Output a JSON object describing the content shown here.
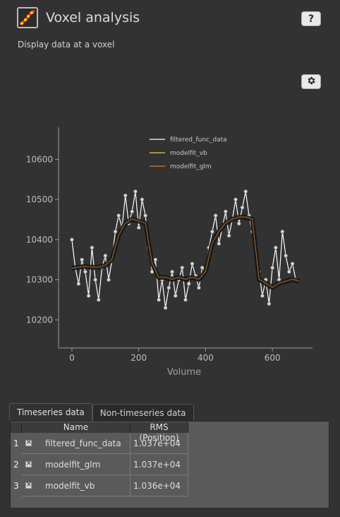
{
  "header": {
    "title": "Voxel analysis",
    "subtitle": "Display data at a voxel",
    "help_label": "?"
  },
  "icons": {
    "app": "voxel-plot-icon",
    "settings": "gear-icon"
  },
  "colors": {
    "background": "#323232",
    "filtered_func_data": "#ffffff",
    "modelfit_vb": "#f2c94c",
    "modelfit_glm": "#e07b2a"
  },
  "chart_data": {
    "type": "line",
    "xlabel": "Volume",
    "ylabel": "",
    "xlim": [
      -40,
      720
    ],
    "ylim": [
      10130,
      10680
    ],
    "xticks": [
      0,
      200,
      400,
      600
    ],
    "yticks": [
      10200,
      10300,
      10400,
      10500,
      10600
    ],
    "legend": {
      "placement": "top-center"
    },
    "grid": false,
    "series": [
      {
        "name": "filtered_func_data",
        "color": "#ffffff",
        "style": "line-with-markers",
        "x": [
          0,
          10,
          20,
          30,
          40,
          50,
          60,
          70,
          80,
          90,
          100,
          110,
          120,
          130,
          140,
          150,
          160,
          170,
          180,
          190,
          200,
          210,
          220,
          230,
          240,
          250,
          260,
          270,
          280,
          290,
          300,
          310,
          320,
          330,
          340,
          350,
          360,
          370,
          380,
          390,
          400,
          410,
          420,
          430,
          440,
          450,
          460,
          470,
          480,
          490,
          500,
          510,
          520,
          530,
          540,
          550,
          560,
          570,
          580,
          590,
          600,
          610,
          620,
          630,
          640,
          650,
          660,
          670
        ],
        "values": [
          10400,
          10330,
          10290,
          10350,
          10320,
          10260,
          10380,
          10300,
          10250,
          10330,
          10360,
          10300,
          10350,
          10420,
          10460,
          10430,
          10510,
          10440,
          10470,
          10520,
          10430,
          10500,
          10460,
          10380,
          10320,
          10350,
          10250,
          10300,
          10230,
          10280,
          10320,
          10260,
          10300,
          10330,
          10250,
          10290,
          10340,
          10310,
          10280,
          10330,
          10320,
          10380,
          10420,
          10460,
          10390,
          10430,
          10470,
          10410,
          10450,
          10500,
          10440,
          10480,
          10520,
          10460,
          10420,
          10380,
          10320,
          10260,
          10300,
          10240,
          10330,
          10380,
          10300,
          10420,
          10360,
          10320,
          10340,
          10300
        ]
      },
      {
        "name": "modelfit_vb",
        "color": "#f2c94c",
        "style": "line",
        "x": [
          0,
          20,
          40,
          60,
          80,
          100,
          120,
          140,
          160,
          180,
          200,
          220,
          240,
          260,
          280,
          300,
          320,
          340,
          360,
          380,
          400,
          420,
          440,
          460,
          480,
          500,
          520,
          540,
          560,
          580,
          600,
          620,
          640,
          660,
          680
        ],
        "values": [
          10330,
          10330,
          10335,
          10330,
          10330,
          10335,
          10350,
          10410,
          10440,
          10450,
          10445,
          10440,
          10340,
          10305,
          10305,
          10300,
          10305,
          10300,
          10305,
          10300,
          10320,
          10390,
          10420,
          10440,
          10450,
          10455,
          10455,
          10450,
          10300,
          10290,
          10280,
          10290,
          10295,
          10300,
          10295
        ]
      },
      {
        "name": "modelfit_glm",
        "color": "#e07b2a",
        "style": "line",
        "x": [
          0,
          20,
          40,
          60,
          80,
          100,
          120,
          140,
          160,
          180,
          200,
          220,
          240,
          260,
          280,
          300,
          320,
          340,
          360,
          380,
          400,
          420,
          440,
          460,
          480,
          500,
          520,
          540,
          560,
          580,
          600,
          620,
          640,
          660,
          680
        ],
        "values": [
          10328,
          10332,
          10333,
          10332,
          10332,
          10337,
          10352,
          10412,
          10442,
          10452,
          10447,
          10442,
          10342,
          10307,
          10307,
          10302,
          10307,
          10302,
          10307,
          10302,
          10322,
          10392,
          10422,
          10442,
          10452,
          10457,
          10457,
          10452,
          10302,
          10292,
          10282,
          10292,
          10297,
          10302,
          10297
        ]
      }
    ]
  },
  "tabs": [
    {
      "label": "Timeseries data",
      "active": true
    },
    {
      "label": "Non-timeseries data",
      "active": false
    }
  ],
  "table": {
    "columns": [
      "Name",
      "RMS (Position)"
    ],
    "rows": [
      {
        "num": "1",
        "name": "filtered_func_data",
        "rms": "1.037e+04",
        "checked": true
      },
      {
        "num": "2",
        "name": "modelfit_glm",
        "rms": "1.037e+04",
        "checked": true
      },
      {
        "num": "3",
        "name": "modelfit_vb",
        "rms": "1.036e+04",
        "checked": true
      }
    ]
  }
}
